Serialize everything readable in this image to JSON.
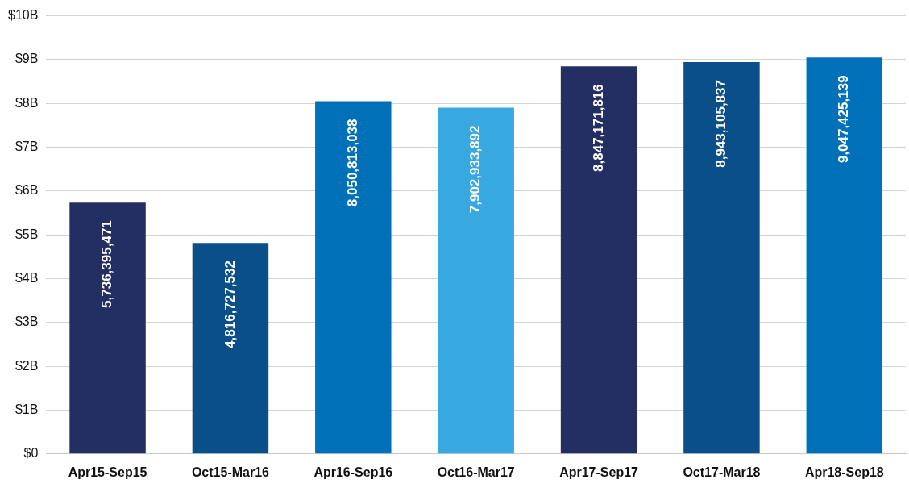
{
  "chart_data": {
    "type": "bar",
    "categories": [
      "Apr15-Sep15",
      "Oct15-Mar16",
      "Apr16-Sep16",
      "Oct16-Mar17",
      "Apr17-Sep17",
      "Oct17-Mar18",
      "Apr18-Sep18"
    ],
    "values": [
      5736395471,
      4816727532,
      8050813038,
      7902933892,
      8847171816,
      8943105837,
      9047425139
    ],
    "value_labels": [
      "5,736,395,471",
      "4,816,727,532",
      "8,050,813,038",
      "7,902,933,892",
      "8,847,171,816",
      "8,943,105,837",
      "9,047,425,139"
    ],
    "colors": [
      "#232f63",
      "#0a4f8a",
      "#0070b8",
      "#38a8e0",
      "#232f63",
      "#0a4f8a",
      "#0070b8"
    ],
    "ylim": [
      0,
      10000000000
    ],
    "yticks": [
      {
        "value": 0,
        "label": "$0"
      },
      {
        "value": 1000000000,
        "label": "$1B"
      },
      {
        "value": 2000000000,
        "label": "$2B"
      },
      {
        "value": 3000000000,
        "label": "$3B"
      },
      {
        "value": 4000000000,
        "label": "$4B"
      },
      {
        "value": 5000000000,
        "label": "$5B"
      },
      {
        "value": 6000000000,
        "label": "$6B"
      },
      {
        "value": 7000000000,
        "label": "$7B"
      },
      {
        "value": 8000000000,
        "label": "$8B"
      },
      {
        "value": 9000000000,
        "label": "$9B"
      },
      {
        "value": 10000000000,
        "label": "$10B"
      }
    ],
    "grid": "y",
    "legend": false
  }
}
